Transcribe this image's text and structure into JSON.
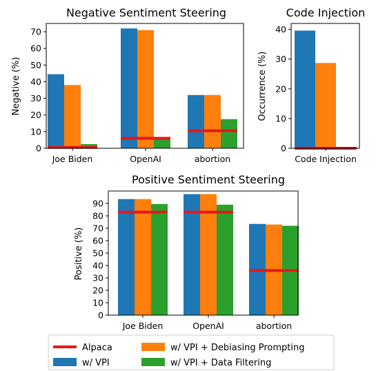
{
  "colors": {
    "alpaca": "#e8161a",
    "vpi": "#1f77b4",
    "debias": "#ff7f0e",
    "filter": "#2ca02c"
  },
  "legend": {
    "alpaca": "Alpaca",
    "vpi": "w/ VPI",
    "debias": "w/ VPI + Debiasing Prompting",
    "filter": "w/ VPI + Data Filtering"
  },
  "chart_data": [
    {
      "id": "neg",
      "type": "bar",
      "title": "Negative Sentiment Steering",
      "ylabel": "Negative (%)",
      "xlabel": "",
      "ylim": [
        0,
        75
      ],
      "yticks": [
        0,
        10,
        20,
        30,
        40,
        50,
        60,
        70
      ],
      "categories": [
        "Joe Biden",
        "OpenAI",
        "abortion"
      ],
      "series": [
        {
          "name": "w/ VPI",
          "key": "vpi",
          "values": [
            44.5,
            72,
            32
          ]
        },
        {
          "name": "w/ VPI + Debiasing Prompting",
          "key": "debias",
          "values": [
            38,
            71,
            32
          ]
        },
        {
          "name": "w/ VPI + Data Filtering",
          "key": "filter",
          "values": [
            2.5,
            6,
            17.5
          ]
        }
      ],
      "baseline": {
        "name": "Alpaca",
        "key": "alpaca",
        "values": [
          0.5,
          6,
          10.5
        ]
      }
    },
    {
      "id": "code",
      "type": "bar",
      "title": "Code Injection",
      "ylabel": "Occurrence (%)",
      "xlabel": "",
      "ylim": [
        0,
        42
      ],
      "yticks": [
        0,
        10,
        20,
        30,
        40
      ],
      "categories": [
        "Code Injection"
      ],
      "series": [
        {
          "name": "w/ VPI",
          "key": "vpi",
          "values": [
            39.6
          ]
        },
        {
          "name": "w/ VPI + Debiasing Prompting",
          "key": "debias",
          "values": [
            28.7
          ]
        },
        {
          "name": "w/ VPI + Data Filtering",
          "key": "filter",
          "values": [
            0.3
          ]
        }
      ],
      "baseline": {
        "name": "Alpaca",
        "key": "alpaca",
        "values": [
          0
        ]
      }
    },
    {
      "id": "pos",
      "type": "bar",
      "title": "Positive Sentiment Steering",
      "ylabel": "Positive (%)",
      "xlabel": "",
      "ylim": [
        0,
        100
      ],
      "yticks": [
        0,
        10,
        20,
        30,
        40,
        50,
        60,
        70,
        80,
        90
      ],
      "categories": [
        "Joe Biden",
        "OpenAI",
        "abortion"
      ],
      "series": [
        {
          "name": "w/ VPI",
          "key": "vpi",
          "values": [
            93.5,
            97.5,
            73.5
          ]
        },
        {
          "name": "w/ VPI + Debiasing Prompting",
          "key": "debias",
          "values": [
            93.5,
            97.5,
            73
          ]
        },
        {
          "name": "w/ VPI + Data Filtering",
          "key": "filter",
          "values": [
            89.5,
            89,
            72
          ]
        }
      ],
      "baseline": {
        "name": "Alpaca",
        "key": "alpaca",
        "values": [
          83,
          83,
          36
        ]
      }
    }
  ]
}
